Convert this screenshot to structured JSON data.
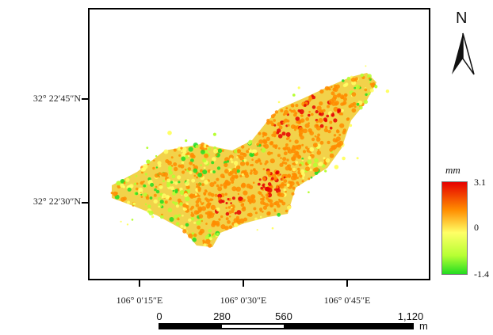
{
  "latitude_labels": [
    "32° 22′45″N",
    "32° 22′30″N"
  ],
  "longitude_labels": [
    "106° 0′15″E",
    "106° 0′30″E",
    "106° 0′45″E"
  ],
  "north_arrow": {
    "letter": "N",
    "icon": "north-arrow-icon"
  },
  "legend": {
    "unit": "mm",
    "max_label": "3.1",
    "mid_label": "0",
    "min_label": "-1.4",
    "colors": [
      "#e60000",
      "#ff8c00",
      "#ffff66",
      "#b6ff33",
      "#22dd22"
    ]
  },
  "scale_bar": {
    "labels": [
      "0",
      "280",
      "560",
      "1,120"
    ],
    "unit": "m"
  }
}
